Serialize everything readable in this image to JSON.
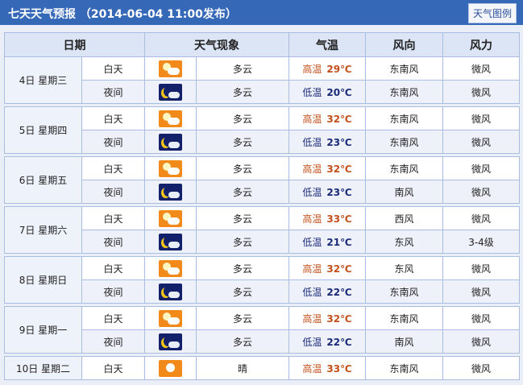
{
  "header": {
    "title": "七天天气预报 （2014-06-04 11:00发布）",
    "legend_button": "天气图例"
  },
  "columns": [
    "日期",
    "天气现象",
    "气温",
    "风向",
    "风力"
  ],
  "colors": {
    "high": "#c3501c",
    "low": "#1a2a78",
    "header": "#3668b8"
  },
  "days": [
    {
      "date": "4日 星期三",
      "rows": [
        {
          "period": "白天",
          "icon": "partly-cloudy-day-icon",
          "weather": "多云",
          "temp_label": "高温",
          "temp": "29℃",
          "dir": "东南风",
          "force": "微风"
        },
        {
          "period": "夜间",
          "icon": "partly-cloudy-night-icon",
          "weather": "多云",
          "temp_label": "低温",
          "temp": "20℃",
          "dir": "东南风",
          "force": "微风"
        }
      ]
    },
    {
      "date": "5日 星期四",
      "rows": [
        {
          "period": "白天",
          "icon": "partly-cloudy-day-icon",
          "weather": "多云",
          "temp_label": "高温",
          "temp": "32℃",
          "dir": "东南风",
          "force": "微风"
        },
        {
          "period": "夜间",
          "icon": "partly-cloudy-night-icon",
          "weather": "多云",
          "temp_label": "低温",
          "temp": "23℃",
          "dir": "东南风",
          "force": "微风"
        }
      ]
    },
    {
      "date": "6日 星期五",
      "rows": [
        {
          "period": "白天",
          "icon": "partly-cloudy-day-icon",
          "weather": "多云",
          "temp_label": "高温",
          "temp": "32℃",
          "dir": "东南风",
          "force": "微风"
        },
        {
          "period": "夜间",
          "icon": "partly-cloudy-night-icon",
          "weather": "多云",
          "temp_label": "低温",
          "temp": "23℃",
          "dir": "南风",
          "force": "微风"
        }
      ]
    },
    {
      "date": "7日 星期六",
      "rows": [
        {
          "period": "白天",
          "icon": "partly-cloudy-day-icon",
          "weather": "多云",
          "temp_label": "高温",
          "temp": "33℃",
          "dir": "西风",
          "force": "微风"
        },
        {
          "period": "夜间",
          "icon": "partly-cloudy-night-icon",
          "weather": "多云",
          "temp_label": "低温",
          "temp": "21℃",
          "dir": "东风",
          "force": "3-4级"
        }
      ]
    },
    {
      "date": "8日 星期日",
      "rows": [
        {
          "period": "白天",
          "icon": "partly-cloudy-day-icon",
          "weather": "多云",
          "temp_label": "高温",
          "temp": "32℃",
          "dir": "东风",
          "force": "微风"
        },
        {
          "period": "夜间",
          "icon": "partly-cloudy-night-icon",
          "weather": "多云",
          "temp_label": "低温",
          "temp": "22℃",
          "dir": "东南风",
          "force": "微风"
        }
      ]
    },
    {
      "date": "9日 星期一",
      "rows": [
        {
          "period": "白天",
          "icon": "partly-cloudy-day-icon",
          "weather": "多云",
          "temp_label": "高温",
          "temp": "32℃",
          "dir": "东南风",
          "force": "微风"
        },
        {
          "period": "夜间",
          "icon": "partly-cloudy-night-icon",
          "weather": "多云",
          "temp_label": "低温",
          "temp": "22℃",
          "dir": "南风",
          "force": "微风"
        }
      ]
    },
    {
      "date": "10日 星期二",
      "rows": [
        {
          "period": "白天",
          "icon": "sunny-icon",
          "weather": "晴",
          "temp_label": "高温",
          "temp": "33℃",
          "dir": "东南风",
          "force": "微风"
        }
      ]
    }
  ]
}
